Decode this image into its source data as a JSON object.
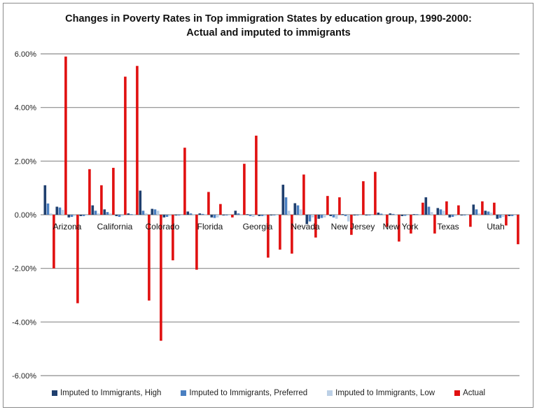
{
  "chart_data": {
    "type": "bar",
    "title": "Changes in Poverty Rates in Top immigration States by education group, 1990-2000:",
    "subtitle": "Actual and imputed to immigrants",
    "xlabel": "",
    "ylabel": "",
    "ylim": [
      -0.06,
      0.06
    ],
    "yticks": [
      "6.00%",
      "4.00%",
      "2.00%",
      "0.00%",
      "-2.00%",
      "-4.00%",
      "-6.00%"
    ],
    "ytick_values": [
      0.06,
      0.04,
      0.02,
      0.0,
      -0.02,
      -0.04,
      -0.06
    ],
    "grid": true,
    "legend_position": "bottom",
    "categories": [
      "Arizona",
      "California",
      "Colorado",
      "Florida",
      "Georgia",
      "Nevada",
      "New Jersey",
      "New York",
      "Texas",
      "Utah"
    ],
    "subgroups_per_category": 4,
    "series": [
      {
        "name": "Imputed to Immigrants, High",
        "color": "#1f3f6e",
        "values": [
          1.1,
          0.3,
          -0.1,
          -0.05,
          0.35,
          0.2,
          -0.05,
          0.05,
          0.9,
          0.22,
          -0.1,
          0.0,
          0.12,
          0.05,
          -0.1,
          -0.02,
          0.15,
          0.02,
          -0.05,
          -0.02,
          1.12,
          0.43,
          -0.35,
          -0.15,
          -0.05,
          0.02,
          0.0,
          0.0,
          0.08,
          0.05,
          -0.05,
          0.02,
          0.65,
          0.25,
          -0.1,
          0.0,
          0.38,
          0.15,
          -0.15,
          -0.05
        ]
      },
      {
        "name": "Imputed to Immigrants, Preferred",
        "color": "#4a7fc1",
        "values": [
          0.42,
          0.27,
          -0.08,
          -0.05,
          0.15,
          0.1,
          -0.08,
          0.02,
          0.15,
          0.2,
          -0.08,
          0.0,
          0.05,
          0.03,
          -0.12,
          -0.02,
          0.05,
          -0.05,
          -0.05,
          -0.02,
          0.65,
          0.35,
          -0.25,
          -0.12,
          -0.1,
          -0.05,
          0.0,
          0.0,
          0.04,
          0.03,
          -0.04,
          0.02,
          0.3,
          0.2,
          -0.08,
          0.0,
          0.2,
          0.12,
          -0.12,
          -0.05
        ]
      },
      {
        "name": "Imputed to Immigrants, Low",
        "color": "#bcd0e6",
        "values": [
          0.05,
          0.18,
          -0.05,
          -0.03,
          0.05,
          0.05,
          -0.05,
          0.02,
          0.05,
          0.15,
          -0.05,
          0.0,
          0.02,
          0.02,
          -0.1,
          -0.02,
          0.02,
          -0.08,
          -0.05,
          -0.02,
          0.15,
          0.2,
          -0.1,
          -0.1,
          -0.15,
          -0.25,
          0.0,
          0.0,
          0.02,
          0.02,
          -0.03,
          0.02,
          0.1,
          0.15,
          -0.05,
          0.0,
          0.05,
          0.08,
          -0.08,
          -0.03
        ]
      },
      {
        "name": "Actual",
        "color": "#e01010",
        "values": [
          -2.0,
          5.9,
          -3.3,
          1.7,
          1.1,
          1.75,
          5.15,
          5.55,
          -3.2,
          -4.7,
          -1.7,
          2.5,
          -2.05,
          0.85,
          0.4,
          -0.1,
          1.9,
          2.95,
          -1.6,
          -1.3,
          -1.45,
          1.5,
          -0.85,
          0.7,
          0.65,
          -0.75,
          1.25,
          1.6,
          -0.45,
          -1.0,
          -0.7,
          0.45,
          -0.7,
          0.5,
          0.35,
          -0.45,
          0.5,
          0.45,
          -0.4,
          -1.1
        ]
      }
    ],
    "value_units": "percentage points"
  }
}
